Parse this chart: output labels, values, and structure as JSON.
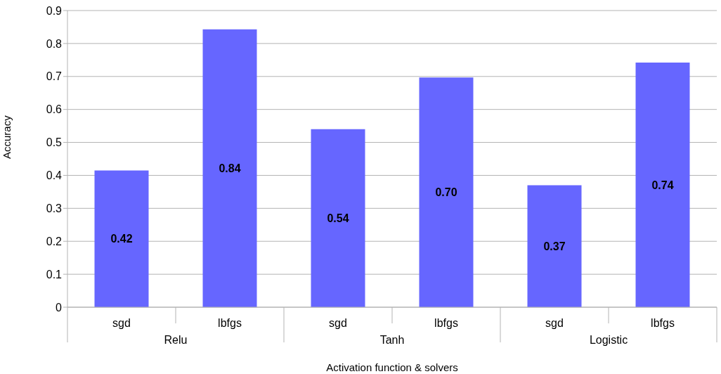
{
  "chart_data": {
    "type": "bar",
    "xlabel": "Activation function & solvers",
    "ylabel": "Accuracy",
    "categories": [
      "sgd",
      "lbfgs",
      "sgd",
      "lbfgs",
      "sgd",
      "lbfgs"
    ],
    "values": [
      0.415,
      0.843,
      0.54,
      0.697,
      0.37,
      0.742
    ],
    "value_labels": [
      "0.42",
      "0.84",
      "0.54",
      "0.70",
      "0.37",
      "0.74"
    ],
    "color": "#6666ff",
    "ylim": [
      0,
      0.9
    ],
    "yticks": [
      0,
      0.1,
      0.2,
      0.3,
      0.4,
      0.5,
      0.6,
      0.7,
      0.8,
      0.9
    ],
    "grid": "y",
    "annotations": [
      "Relu",
      "Tanh",
      "Logistic"
    ]
  }
}
